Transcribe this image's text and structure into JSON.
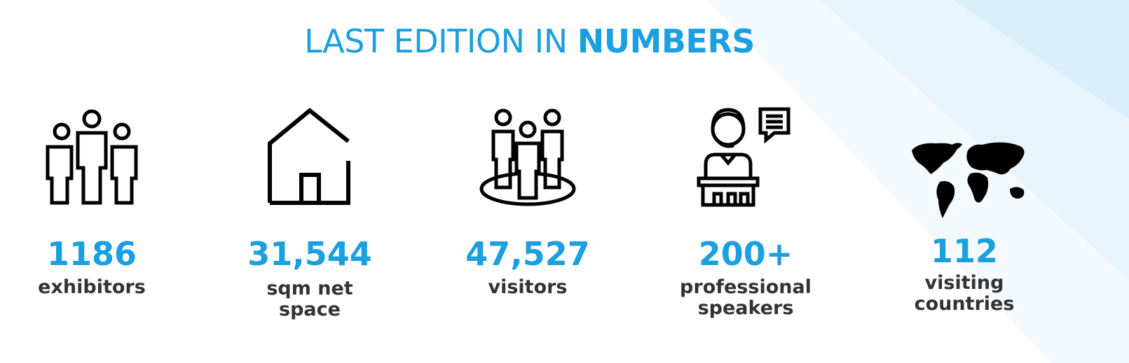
{
  "header": {
    "title_light": "LAST EDITION IN",
    "title_bold": "NUMBERS"
  },
  "stats": [
    {
      "value": "1186",
      "label": "exhibitors"
    },
    {
      "value": "31,544",
      "label": "sqm net space"
    },
    {
      "value": "47,527",
      "label": "visitors"
    },
    {
      "value": "200+",
      "label": "professional speakers"
    },
    {
      "value": "112",
      "label": "visiting countries"
    }
  ]
}
